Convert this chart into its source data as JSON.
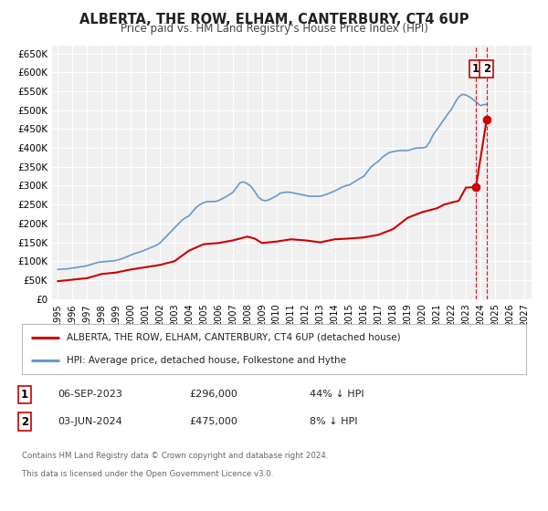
{
  "title": "ALBERTA, THE ROW, ELHAM, CANTERBURY, CT4 6UP",
  "subtitle": "Price paid vs. HM Land Registry's House Price Index (HPI)",
  "ylim": [
    0,
    670000
  ],
  "yticks": [
    0,
    50000,
    100000,
    150000,
    200000,
    250000,
    300000,
    350000,
    400000,
    450000,
    500000,
    550000,
    600000,
    650000
  ],
  "ytick_labels": [
    "£0",
    "£50K",
    "£100K",
    "£150K",
    "£200K",
    "£250K",
    "£300K",
    "£350K",
    "£400K",
    "£450K",
    "£500K",
    "£550K",
    "£600K",
    "£650K"
  ],
  "xlim_start": 1994.6,
  "xlim_end": 2027.5,
  "xtick_years": [
    1995,
    1996,
    1997,
    1998,
    1999,
    2000,
    2001,
    2002,
    2003,
    2004,
    2005,
    2006,
    2007,
    2008,
    2009,
    2010,
    2011,
    2012,
    2013,
    2014,
    2015,
    2016,
    2017,
    2018,
    2019,
    2020,
    2021,
    2022,
    2023,
    2024,
    2025,
    2026,
    2027
  ],
  "red_color": "#cc0000",
  "blue_color": "#6699cc",
  "marker_color": "#cc0000",
  "dashed_line_color": "#cc0000",
  "background_color": "#f0f0f0",
  "grid_color": "#ffffff",
  "legend_label_red": "ALBERTA, THE ROW, ELHAM, CANTERBURY, CT4 6UP (detached house)",
  "legend_label_blue": "HPI: Average price, detached house, Folkestone and Hythe",
  "annotation1_date": "06-SEP-2023",
  "annotation1_price": "£296,000",
  "annotation1_pct": "44% ↓ HPI",
  "annotation2_date": "03-JUN-2024",
  "annotation2_price": "£475,000",
  "annotation2_pct": "8% ↓ HPI",
  "footer1": "Contains HM Land Registry data © Crown copyright and database right 2024.",
  "footer2": "This data is licensed under the Open Government Licence v3.0.",
  "sale1_x": 2023.68,
  "sale1_y": 296000,
  "sale2_x": 2024.42,
  "sale2_y": 475000,
  "vline1_x": 2023.68,
  "vline2_x": 2024.42,
  "hpi_data": [
    [
      1995.0,
      78000
    ],
    [
      1995.25,
      79000
    ],
    [
      1995.5,
      79500
    ],
    [
      1995.75,
      80000
    ],
    [
      1996.0,
      82000
    ],
    [
      1996.25,
      83000
    ],
    [
      1996.5,
      85000
    ],
    [
      1996.75,
      86000
    ],
    [
      1997.0,
      88000
    ],
    [
      1997.25,
      91000
    ],
    [
      1997.5,
      94000
    ],
    [
      1997.75,
      97000
    ],
    [
      1998.0,
      98000
    ],
    [
      1998.25,
      99000
    ],
    [
      1998.5,
      100000
    ],
    [
      1998.75,
      100500
    ],
    [
      1999.0,
      102000
    ],
    [
      1999.25,
      105000
    ],
    [
      1999.5,
      108000
    ],
    [
      1999.75,
      112000
    ],
    [
      2000.0,
      116000
    ],
    [
      2000.25,
      120000
    ],
    [
      2000.5,
      123000
    ],
    [
      2000.75,
      126000
    ],
    [
      2001.0,
      130000
    ],
    [
      2001.25,
      134000
    ],
    [
      2001.5,
      138000
    ],
    [
      2001.75,
      142000
    ],
    [
      2002.0,
      148000
    ],
    [
      2002.25,
      158000
    ],
    [
      2002.5,
      168000
    ],
    [
      2002.75,
      178000
    ],
    [
      2003.0,
      188000
    ],
    [
      2003.25,
      198000
    ],
    [
      2003.5,
      208000
    ],
    [
      2003.75,
      215000
    ],
    [
      2004.0,
      220000
    ],
    [
      2004.25,
      232000
    ],
    [
      2004.5,
      243000
    ],
    [
      2004.75,
      250000
    ],
    [
      2005.0,
      255000
    ],
    [
      2005.25,
      258000
    ],
    [
      2005.5,
      258000
    ],
    [
      2005.75,
      258000
    ],
    [
      2006.0,
      260000
    ],
    [
      2006.25,
      265000
    ],
    [
      2006.5,
      270000
    ],
    [
      2006.75,
      276000
    ],
    [
      2007.0,
      282000
    ],
    [
      2007.25,
      295000
    ],
    [
      2007.5,
      308000
    ],
    [
      2007.75,
      310000
    ],
    [
      2008.0,
      305000
    ],
    [
      2008.25,
      298000
    ],
    [
      2008.5,
      285000
    ],
    [
      2008.75,
      270000
    ],
    [
      2009.0,
      262000
    ],
    [
      2009.25,
      260000
    ],
    [
      2009.5,
      263000
    ],
    [
      2009.75,
      268000
    ],
    [
      2010.0,
      273000
    ],
    [
      2010.25,
      280000
    ],
    [
      2010.5,
      282000
    ],
    [
      2010.75,
      283000
    ],
    [
      2011.0,
      282000
    ],
    [
      2011.25,
      280000
    ],
    [
      2011.5,
      278000
    ],
    [
      2011.75,
      276000
    ],
    [
      2012.0,
      274000
    ],
    [
      2012.25,
      272000
    ],
    [
      2012.5,
      272000
    ],
    [
      2012.75,
      272000
    ],
    [
      2013.0,
      272000
    ],
    [
      2013.25,
      275000
    ],
    [
      2013.5,
      278000
    ],
    [
      2013.75,
      282000
    ],
    [
      2014.0,
      286000
    ],
    [
      2014.25,
      291000
    ],
    [
      2014.5,
      296000
    ],
    [
      2014.75,
      300000
    ],
    [
      2015.0,
      302000
    ],
    [
      2015.25,
      308000
    ],
    [
      2015.5,
      314000
    ],
    [
      2015.75,
      320000
    ],
    [
      2016.0,
      325000
    ],
    [
      2016.25,
      338000
    ],
    [
      2016.5,
      350000
    ],
    [
      2016.75,
      358000
    ],
    [
      2017.0,
      365000
    ],
    [
      2017.25,
      375000
    ],
    [
      2017.5,
      382000
    ],
    [
      2017.75,
      388000
    ],
    [
      2018.0,
      390000
    ],
    [
      2018.25,
      392000
    ],
    [
      2018.5,
      393000
    ],
    [
      2018.75,
      393000
    ],
    [
      2019.0,
      393000
    ],
    [
      2019.25,
      396000
    ],
    [
      2019.5,
      399000
    ],
    [
      2019.75,
      400000
    ],
    [
      2020.0,
      400000
    ],
    [
      2020.25,
      402000
    ],
    [
      2020.5,
      415000
    ],
    [
      2020.75,
      435000
    ],
    [
      2021.0,
      448000
    ],
    [
      2021.25,
      462000
    ],
    [
      2021.5,
      476000
    ],
    [
      2021.75,
      490000
    ],
    [
      2022.0,
      502000
    ],
    [
      2022.25,
      520000
    ],
    [
      2022.5,
      535000
    ],
    [
      2022.75,
      542000
    ],
    [
      2023.0,
      540000
    ],
    [
      2023.25,
      535000
    ],
    [
      2023.5,
      528000
    ],
    [
      2023.75,
      520000
    ],
    [
      2024.0,
      512000
    ],
    [
      2024.25,
      515000
    ],
    [
      2024.42,
      515000
    ]
  ],
  "price_data": [
    [
      1995.0,
      47000
    ],
    [
      1996.0,
      51000
    ],
    [
      1997.0,
      55000
    ],
    [
      1998.0,
      66000
    ],
    [
      1999.0,
      70000
    ],
    [
      2000.0,
      78000
    ],
    [
      2001.0,
      84000
    ],
    [
      2002.0,
      90000
    ],
    [
      2003.0,
      100000
    ],
    [
      2004.0,
      128000
    ],
    [
      2005.0,
      145000
    ],
    [
      2006.0,
      148000
    ],
    [
      2007.0,
      155000
    ],
    [
      2008.0,
      165000
    ],
    [
      2008.5,
      160000
    ],
    [
      2009.0,
      148000
    ],
    [
      2010.0,
      152000
    ],
    [
      2011.0,
      158000
    ],
    [
      2012.0,
      155000
    ],
    [
      2013.0,
      150000
    ],
    [
      2014.0,
      158000
    ],
    [
      2015.0,
      160000
    ],
    [
      2016.0,
      163000
    ],
    [
      2017.0,
      170000
    ],
    [
      2018.0,
      185000
    ],
    [
      2019.0,
      215000
    ],
    [
      2020.0,
      230000
    ],
    [
      2021.0,
      240000
    ],
    [
      2021.5,
      250000
    ],
    [
      2022.0,
      255000
    ],
    [
      2022.5,
      260000
    ],
    [
      2023.0,
      295000
    ],
    [
      2023.68,
      296000
    ],
    [
      2024.42,
      475000
    ]
  ]
}
